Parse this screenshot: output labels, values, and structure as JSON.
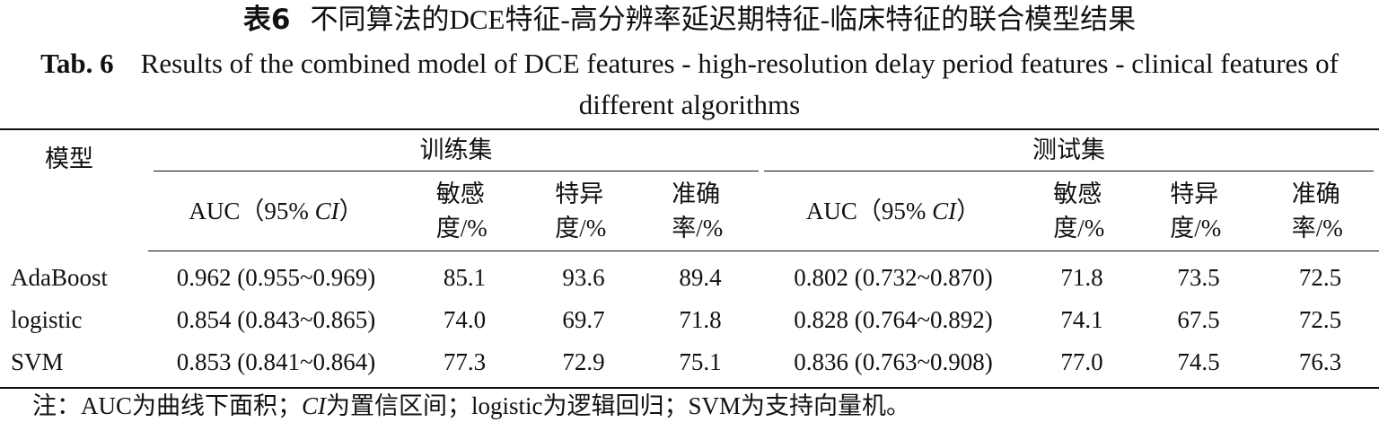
{
  "title_cn": {
    "label": "表6",
    "text": "不同算法的DCE特征-高分辨率延迟期特征-临床特征的联合模型结果"
  },
  "title_en": {
    "label": "Tab. 6",
    "text": "Results of the combined model of DCE features - high-resolution delay period features - clinical features of different algorithms"
  },
  "table": {
    "row_header": "模型",
    "groups": [
      {
        "name": "训练集",
        "columns": [
          {
            "prefix": "AUC（95% ",
            "italic": "CI",
            "suffix": "）"
          },
          "敏感度/%",
          "特异度/%",
          "准确率/%"
        ]
      },
      {
        "name": "测试集",
        "columns": [
          {
            "prefix": "AUC（95% ",
            "italic": "CI",
            "suffix": "）"
          },
          "敏感度/%",
          "特异度/%",
          "准确率/%"
        ]
      }
    ],
    "rows": [
      [
        "AdaBoost",
        "0.962 (0.955~0.969)",
        "85.1",
        "93.6",
        "89.4",
        "0.802 (0.732~0.870)",
        "71.8",
        "73.5",
        "72.5"
      ],
      [
        "logistic",
        "0.854 (0.843~0.865)",
        "74.0",
        "69.7",
        "71.8",
        "0.828 (0.764~0.892)",
        "74.1",
        "67.5",
        "72.5"
      ],
      [
        "SVM",
        "0.853 (0.841~0.864)",
        "77.3",
        "72.9",
        "75.1",
        "0.836 (0.763~0.908)",
        "77.0",
        "74.5",
        "76.3"
      ]
    ]
  },
  "note": {
    "prefix": "注：AUC为曲线下面积；",
    "italic": "CI",
    "suffix": "为置信区间；logistic为逻辑回归；SVM为支持向量机。"
  }
}
